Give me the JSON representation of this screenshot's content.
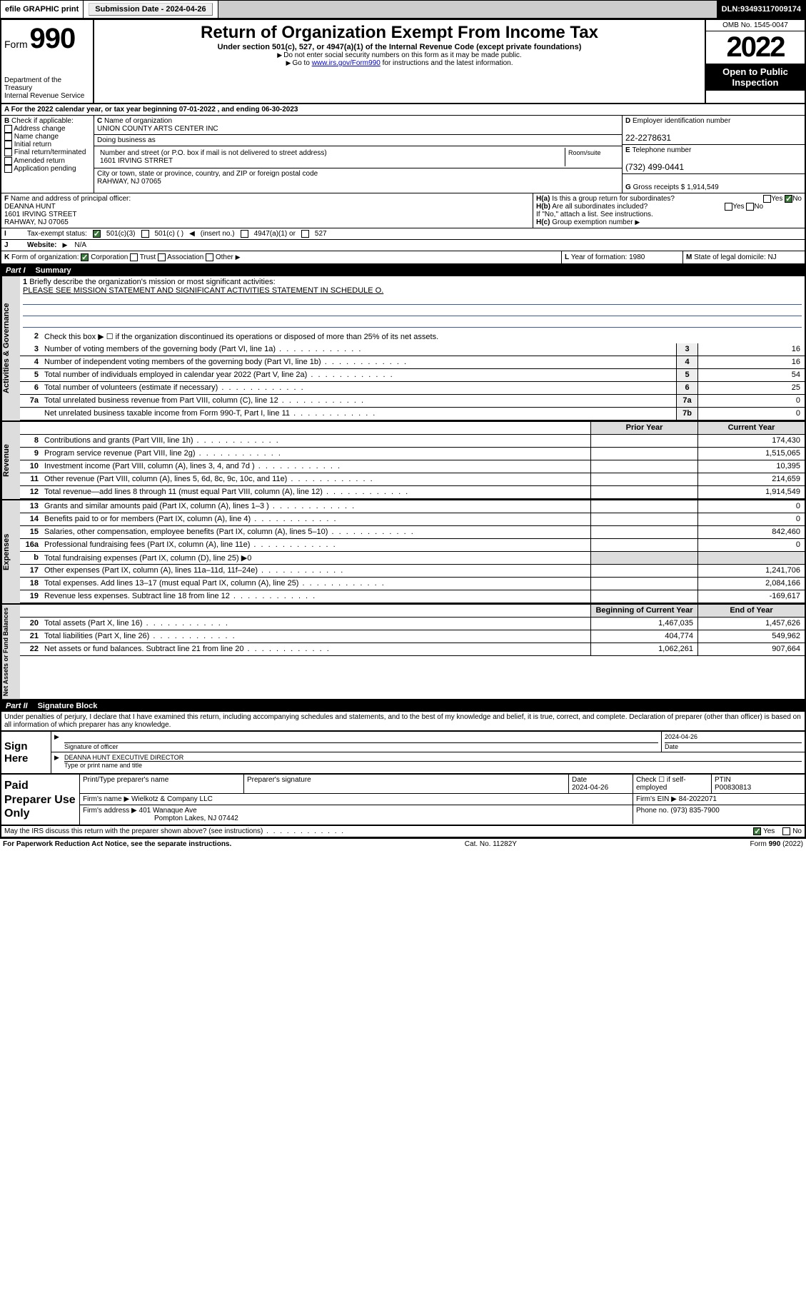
{
  "topbar": {
    "efile": "efile GRAPHIC print",
    "sub_label": "Submission Date - ",
    "sub_date": "2024-04-26",
    "dln_label": "DLN: ",
    "dln": "93493117009174"
  },
  "header": {
    "form_word": "Form",
    "form_no": "990",
    "dept": "Department of the Treasury",
    "irs": "Internal Revenue Service",
    "title": "Return of Organization Exempt From Income Tax",
    "subtitle": "Under section 501(c), 527, or 4947(a)(1) of the Internal Revenue Code (except private foundations)",
    "note1": "Do not enter social security numbers on this form as it may be made public.",
    "note2_pre": "Go to ",
    "note2_link": "www.irs.gov/Form990",
    "note2_post": " for instructions and the latest information.",
    "omb": "OMB No. 1545-0047",
    "year": "2022",
    "open1": "Open to Public",
    "open2": "Inspection"
  },
  "period": {
    "text_a": "For the 2022 calendar year, or tax year beginning ",
    "begin": "07-01-2022",
    "text_b": " , and ending ",
    "end": "06-30-2023"
  },
  "B": {
    "label": "Check if applicable:",
    "opts": [
      "Address change",
      "Name change",
      "Initial return",
      "Final return/terminated",
      "Amended return",
      "Application pending"
    ]
  },
  "C": {
    "name_label": "Name of organization",
    "name": "UNION COUNTY ARTS CENTER INC",
    "dba_label": "Doing business as",
    "addr_label": "Number and street (or P.O. box if mail is not delivered to street address)",
    "addr": "1601 IRVING STRRET",
    "room_label": "Room/suite",
    "city_label": "City or town, state or province, country, and ZIP or foreign postal code",
    "city": "RAHWAY, NJ 07065"
  },
  "D": {
    "ein_label": "Employer identification number",
    "ein": "22-2278631",
    "tel_label": "Telephone number",
    "tel": "(732) 499-0441",
    "gross_label": "Gross receipts $ ",
    "gross": "1,914,549"
  },
  "F": {
    "label": "Name and address of principal officer:",
    "name": "DEANNA HUNT",
    "addr1": "1601 IRVING STREET",
    "addr2": "RAHWAY, NJ  07065"
  },
  "H": {
    "a": "Is this a group return for subordinates?",
    "a_yes": "Yes",
    "a_no": "No",
    "b": "Are all subordinates included?",
    "b_note": "If \"No,\" attach a list. See instructions.",
    "c": "Group exemption number"
  },
  "I": {
    "label": "Tax-exempt status:",
    "o1": "501(c)(3)",
    "o2": "501(c) (  )",
    "o2b": "(insert no.)",
    "o3": "4947(a)(1) or",
    "o4": "527"
  },
  "J": {
    "label": "Website:",
    "val": "N/A"
  },
  "K": {
    "label": "Form of organization:",
    "opts": [
      "Corporation",
      "Trust",
      "Association",
      "Other"
    ]
  },
  "L": {
    "label": "Year of formation:",
    "val": "1980"
  },
  "M": {
    "label": "State of legal domicile:",
    "val": "NJ"
  },
  "part1": {
    "title": "Part I",
    "name": "Summary",
    "l1a": "Briefly describe the organization's mission or most significant activities:",
    "l1b": "PLEASE SEE MISSION STATEMENT AND SIGNIFICANT ACTIVITIES STATEMENT IN SCHEDULE O.",
    "l2": "Check this box ▶ ☐  if the organization discontinued its operations or disposed of more than 25% of its net assets.",
    "rows_gov": [
      {
        "n": "3",
        "d": "Number of voting members of the governing body (Part VI, line 1a)",
        "box": "3",
        "v": "16"
      },
      {
        "n": "4",
        "d": "Number of independent voting members of the governing body (Part VI, line 1b)",
        "box": "4",
        "v": "16"
      },
      {
        "n": "5",
        "d": "Total number of individuals employed in calendar year 2022 (Part V, line 2a)",
        "box": "5",
        "v": "54"
      },
      {
        "n": "6",
        "d": "Total number of volunteers (estimate if necessary)",
        "box": "6",
        "v": "25"
      },
      {
        "n": "7a",
        "d": "Total unrelated business revenue from Part VIII, column (C), line 12",
        "box": "7a",
        "v": "0"
      },
      {
        "n": "",
        "d": "Net unrelated business taxable income from Form 990-T, Part I, line 11",
        "box": "7b",
        "v": "0"
      }
    ],
    "h_py": "Prior Year",
    "h_cy": "Current Year",
    "rows_rev": [
      {
        "n": "8",
        "d": "Contributions and grants (Part VIII, line 1h)",
        "py": "",
        "cy": "174,430"
      },
      {
        "n": "9",
        "d": "Program service revenue (Part VIII, line 2g)",
        "py": "",
        "cy": "1,515,065"
      },
      {
        "n": "10",
        "d": "Investment income (Part VIII, column (A), lines 3, 4, and 7d )",
        "py": "",
        "cy": "10,395"
      },
      {
        "n": "11",
        "d": "Other revenue (Part VIII, column (A), lines 5, 6d, 8c, 9c, 10c, and 11e)",
        "py": "",
        "cy": "214,659"
      },
      {
        "n": "12",
        "d": "Total revenue—add lines 8 through 11 (must equal Part VIII, column (A), line 12)",
        "py": "",
        "cy": "1,914,549"
      }
    ],
    "rows_exp": [
      {
        "n": "13",
        "d": "Grants and similar amounts paid (Part IX, column (A), lines 1–3 )",
        "py": "",
        "cy": "0"
      },
      {
        "n": "14",
        "d": "Benefits paid to or for members (Part IX, column (A), line 4)",
        "py": "",
        "cy": "0"
      },
      {
        "n": "15",
        "d": "Salaries, other compensation, employee benefits (Part IX, column (A), lines 5–10)",
        "py": "",
        "cy": "842,460"
      },
      {
        "n": "16a",
        "d": "Professional fundraising fees (Part IX, column (A), line 11e)",
        "py": "",
        "cy": "0"
      },
      {
        "n": "b",
        "d": "Total fundraising expenses (Part IX, column (D), line 25) ▶0",
        "py": null,
        "cy": null
      },
      {
        "n": "17",
        "d": "Other expenses (Part IX, column (A), lines 11a–11d, 11f–24e)",
        "py": "",
        "cy": "1,241,706"
      },
      {
        "n": "18",
        "d": "Total expenses. Add lines 13–17 (must equal Part IX, column (A), line 25)",
        "py": "",
        "cy": "2,084,166"
      },
      {
        "n": "19",
        "d": "Revenue less expenses. Subtract line 18 from line 12",
        "py": "",
        "cy": "-169,617"
      }
    ],
    "h_boy": "Beginning of Current Year",
    "h_eoy": "End of Year",
    "rows_net": [
      {
        "n": "20",
        "d": "Total assets (Part X, line 16)",
        "py": "1,467,035",
        "cy": "1,457,626"
      },
      {
        "n": "21",
        "d": "Total liabilities (Part X, line 26)",
        "py": "404,774",
        "cy": "549,962"
      },
      {
        "n": "22",
        "d": "Net assets or fund balances. Subtract line 21 from line 20",
        "py": "1,062,261",
        "cy": "907,664"
      }
    ]
  },
  "part2": {
    "title": "Part II",
    "name": "Signature Block",
    "decl": "Under penalties of perjury, I declare that I have examined this return, including accompanying schedules and statements, and to the best of my knowledge and belief, it is true, correct, and complete. Declaration of preparer (other than officer) is based on all information of which preparer has any knowledge.",
    "sign_here": "Sign Here",
    "sig_officer": "Signature of officer",
    "date_lbl": "Date",
    "date": "2024-04-26",
    "name_title": "DEANNA HUNT  EXECUTIVE DIRECTOR",
    "type_lbl": "Type or print name and title",
    "paid": "Paid Preparer Use Only",
    "p_name_lbl": "Print/Type preparer's name",
    "p_sig_lbl": "Preparer's signature",
    "p_date_lbl": "Date",
    "p_date": "2024-04-26",
    "p_check_lbl": "Check ☐ if self-employed",
    "ptin_lbl": "PTIN",
    "ptin": "P00830813",
    "firm_name_lbl": "Firm's name  ▶ ",
    "firm_name": "Wielkotz & Company LLC",
    "firm_ein_lbl": "Firm's EIN ▶ ",
    "firm_ein": "84-2022071",
    "firm_addr_lbl": "Firm's address ▶ ",
    "firm_addr1": "401 Wanaque Ave",
    "firm_addr2": "Pompton Lakes, NJ  07442",
    "phone_lbl": "Phone no. ",
    "phone": "(973) 835-7900",
    "may_irs": "May the IRS discuss this return with the preparer shown above? (see instructions)",
    "yes": "Yes",
    "no": "No"
  },
  "footer": {
    "l": "For Paperwork Reduction Act Notice, see the separate instructions.",
    "c": "Cat. No. 11282Y",
    "r": "Form 990 (2022)"
  }
}
